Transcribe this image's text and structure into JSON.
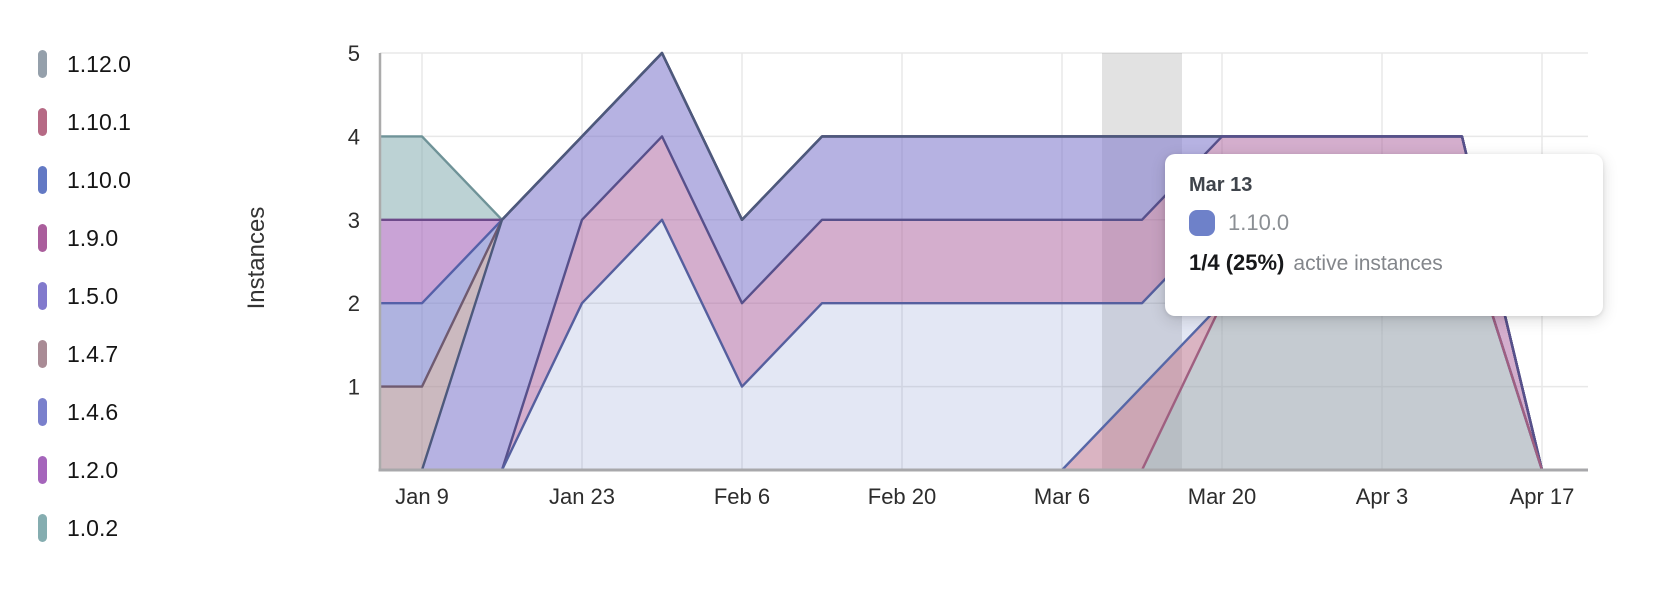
{
  "chart": {
    "y_axis_title": "Instances",
    "y_tick_labels": [
      "1",
      "2",
      "3",
      "4",
      "5"
    ],
    "x_tick_labels": [
      "Jan 9",
      "Jan 23",
      "Feb 6",
      "Feb 20",
      "Mar 6",
      "Mar 20",
      "Apr 3",
      "Apr 17"
    ]
  },
  "chart_data": {
    "type": "area",
    "stacked": true,
    "title": "",
    "xlabel": "",
    "ylabel": "Instances",
    "ylim": [
      0,
      5
    ],
    "grid": true,
    "legend_position": "left",
    "x": [
      "Jan 2",
      "Jan 9",
      "Jan 16",
      "Jan 23",
      "Jan 30",
      "Feb 6",
      "Feb 13",
      "Feb 20",
      "Feb 27",
      "Mar 6",
      "Mar 13",
      "Mar 20",
      "Mar 27",
      "Apr 3",
      "Apr 10",
      "Apr 17"
    ],
    "visible_tick_indices": [
      1,
      3,
      5,
      7,
      9,
      11,
      13,
      15
    ],
    "highlight_x": "Mar 13",
    "stack_order_bottom_to_top": [
      "1.12.0",
      "1.10.1",
      "1.10.0",
      "1.9.0",
      "1.5.0",
      "1.4.7",
      "1.4.6",
      "1.2.0",
      "1.0.2"
    ],
    "series": [
      {
        "name": "1.12.0",
        "values": [
          0,
          0,
          0,
          0,
          0,
          0,
          0,
          0,
          0,
          0,
          0,
          2,
          3,
          3,
          3,
          0
        ],
        "fill": "rgba(149,160,171,0.55)",
        "stroke": "#9f5f80"
      },
      {
        "name": "1.10.1",
        "values": [
          0,
          0,
          0,
          0,
          0,
          0,
          0,
          0,
          0,
          0,
          1,
          0,
          0,
          0,
          0,
          0
        ],
        "fill": "rgba(182,106,133,0.50)",
        "stroke": "#5767a7"
      },
      {
        "name": "1.10.0",
        "values": [
          0,
          0,
          0,
          2,
          3,
          1,
          2,
          2,
          2,
          2,
          1,
          1,
          0,
          0,
          0,
          0
        ],
        "fill": "rgba(99,121,196,0.18)",
        "stroke": "#555f9e"
      },
      {
        "name": "1.9.0",
        "values": [
          0,
          0,
          0,
          1,
          1,
          1,
          1,
          1,
          1,
          1,
          1,
          1,
          1,
          1,
          1,
          0
        ],
        "fill": "rgba(170,94,156,0.50)",
        "stroke": "#57508b"
      },
      {
        "name": "1.5.0",
        "values": [
          0,
          0,
          3,
          1,
          1,
          1,
          1,
          1,
          1,
          1,
          1,
          0,
          0,
          0,
          0,
          0
        ],
        "fill": "rgba(130,122,205,0.58)",
        "stroke": "#4d597c"
      },
      {
        "name": "1.4.7",
        "values": [
          1,
          1,
          0,
          0,
          0,
          0,
          0,
          0,
          0,
          0,
          0,
          0,
          0,
          0,
          0,
          0
        ],
        "fill": "rgba(169,139,149,0.60)",
        "stroke": "#6f5a70"
      },
      {
        "name": "1.4.6",
        "values": [
          1,
          1,
          0,
          0,
          0,
          0,
          0,
          0,
          0,
          0,
          0,
          0,
          0,
          0,
          0,
          0
        ],
        "fill": "rgba(122,128,204,0.60)",
        "stroke": "#5560a8"
      },
      {
        "name": "1.2.0",
        "values": [
          1,
          1,
          0,
          0,
          0,
          0,
          0,
          0,
          0,
          0,
          0,
          0,
          0,
          0,
          0,
          0
        ],
        "fill": "rgba(165,101,187,0.60)",
        "stroke": "#6d4a8a"
      },
      {
        "name": "1.0.2",
        "values": [
          1,
          1,
          0,
          0,
          0,
          0,
          0,
          0,
          0,
          0,
          0,
          0,
          0,
          0,
          0,
          0
        ],
        "fill": "rgba(133,173,176,0.55)",
        "stroke": "#6f9398"
      }
    ]
  },
  "legend": {
    "items": [
      {
        "label": "1.12.0",
        "color": "#95a0ab"
      },
      {
        "label": "1.10.1",
        "color": "#b66a85"
      },
      {
        "label": "1.10.0",
        "color": "#6379c4"
      },
      {
        "label": "1.9.0",
        "color": "#aa5e9c"
      },
      {
        "label": "1.5.0",
        "color": "#827acd"
      },
      {
        "label": "1.4.7",
        "color": "#a98b95"
      },
      {
        "label": "1.4.6",
        "color": "#7a80cc"
      },
      {
        "label": "1.2.0",
        "color": "#a565bb"
      },
      {
        "label": "1.0.2",
        "color": "#85adb0"
      }
    ]
  },
  "tooltip": {
    "date": "Mar 13",
    "series_label": "1.10.0",
    "swatch_color": "#6e81c9",
    "value_text": "1/4 (25%)",
    "suffix": "active instances"
  }
}
